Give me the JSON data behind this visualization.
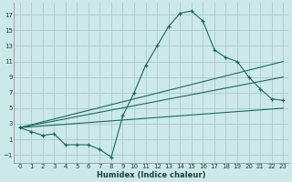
{
  "xlabel": "Humidex (Indice chaleur)",
  "bg_color": "#cce8e8",
  "grid_color": "#aacccc",
  "line_color": "#1a6b5a",
  "xlim": [
    -0.5,
    23.5
  ],
  "ylim": [
    -2,
    18.5
  ],
  "xticks": [
    0,
    1,
    2,
    3,
    4,
    5,
    6,
    7,
    8,
    9,
    10,
    11,
    12,
    13,
    14,
    15,
    16,
    17,
    18,
    19,
    20,
    21,
    22,
    23
  ],
  "yticks": [
    -1,
    1,
    3,
    5,
    7,
    9,
    11,
    13,
    15,
    17
  ],
  "series1_x": [
    0,
    1,
    2,
    3,
    4,
    5,
    6,
    7,
    8,
    9,
    10,
    11,
    12,
    13,
    14,
    15,
    16,
    17,
    18,
    19,
    20,
    21,
    22,
    23
  ],
  "series1_y": [
    2.5,
    2.0,
    1.5,
    1.7,
    0.3,
    0.3,
    0.3,
    -0.3,
    -1.3,
    4.0,
    7.0,
    10.5,
    13.0,
    15.5,
    17.2,
    17.5,
    16.2,
    12.5,
    11.5,
    11.0,
    9.0,
    7.5,
    6.2,
    6.0
  ],
  "series2_x": [
    0,
    23
  ],
  "series2_y": [
    2.5,
    11.0
  ],
  "series3_x": [
    0,
    23
  ],
  "series3_y": [
    2.5,
    9.0
  ],
  "series4_x": [
    0,
    23
  ],
  "series4_y": [
    2.5,
    5.0
  ],
  "marker": "+"
}
